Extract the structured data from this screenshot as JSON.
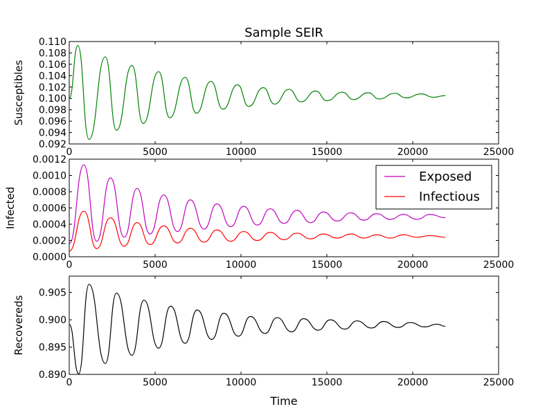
{
  "figure": {
    "title": "Sample SEIR",
    "xlabel": "Time"
  },
  "chart_data": [
    {
      "type": "line",
      "ylabel": "Susceptibles",
      "xlim": [
        0,
        25000
      ],
      "ylim": [
        0.092,
        0.11
      ],
      "xticks": [
        0,
        5000,
        10000,
        15000,
        20000,
        25000
      ],
      "xtick_labels": [
        "0",
        "5000",
        "10000",
        "15000",
        "20000",
        "25000"
      ],
      "yticks": [
        0.092,
        0.094,
        0.096,
        0.098,
        0.1,
        0.102,
        0.104,
        0.106,
        0.108,
        0.11
      ],
      "ytick_labels": [
        "0.092",
        "0.094",
        "0.096",
        "0.098",
        "0.100",
        "0.102",
        "0.104",
        "0.106",
        "0.108",
        "0.110"
      ],
      "grid": false,
      "legend": null,
      "series": [
        {
          "color": "#008000",
          "x": [
            0,
            500,
            1150,
            2100,
            2750,
            3650,
            4300,
            5200,
            5850,
            6750,
            7400,
            8250,
            8950,
            9800,
            10450,
            11300,
            11950,
            12800,
            13500,
            14350,
            15000,
            15900,
            16550,
            17400,
            18050,
            18950,
            19600,
            20500,
            21200,
            21900
          ],
          "y": [
            0.1,
            0.1093,
            0.0928,
            0.1073,
            0.0944,
            0.1058,
            0.0956,
            0.1047,
            0.0966,
            0.1037,
            0.0974,
            0.103,
            0.0981,
            0.1024,
            0.0986,
            0.1019,
            0.099,
            0.1016,
            0.0994,
            0.1013,
            0.0996,
            0.1011,
            0.0998,
            0.101,
            0.0999,
            0.1009,
            0.1001,
            0.1008,
            0.1002,
            0.1005
          ]
        }
      ]
    },
    {
      "type": "line",
      "ylabel": "Infected",
      "xlim": [
        0,
        25000
      ],
      "ylim": [
        0.0,
        0.0012
      ],
      "xticks": [
        0,
        5000,
        10000,
        15000,
        20000,
        25000
      ],
      "xtick_labels": [
        "0",
        "5000",
        "10000",
        "15000",
        "20000",
        "25000"
      ],
      "yticks": [
        0.0,
        0.0002,
        0.0004,
        0.0006,
        0.0008,
        0.001,
        0.0012
      ],
      "ytick_labels": [
        "0.0000",
        "0.0002",
        "0.0004",
        "0.0006",
        "0.0008",
        "0.0010",
        "0.0012"
      ],
      "grid": false,
      "legend": "top-right",
      "series": [
        {
          "name": "Exposed",
          "color": "#bf00bf",
          "x": [
            0,
            850,
            1600,
            2400,
            3200,
            3950,
            4700,
            5500,
            6300,
            7050,
            7850,
            8600,
            9400,
            10150,
            10950,
            11700,
            12500,
            13250,
            14050,
            14800,
            15600,
            16400,
            17150,
            17900,
            18700,
            19450,
            20250,
            21000,
            21900
          ],
          "y": [
            0.00016,
            0.00113,
            0.00019,
            0.00097,
            0.00024,
            0.00084,
            0.00028,
            0.00076,
            0.00031,
            0.0007,
            0.00034,
            0.00065,
            0.00037,
            0.00062,
            0.00039,
            0.00059,
            0.00041,
            0.00057,
            0.00042,
            0.00055,
            0.00044,
            0.00054,
            0.00045,
            0.00053,
            0.00046,
            0.00052,
            0.00046,
            0.00052,
            0.00048
          ]
        },
        {
          "name": "Infectious",
          "color": "#ff0000",
          "x": [
            0,
            850,
            1600,
            2400,
            3200,
            3950,
            4700,
            5500,
            6300,
            7050,
            7850,
            8600,
            9400,
            10150,
            10950,
            11700,
            12500,
            13250,
            14050,
            14800,
            15600,
            16400,
            17150,
            17900,
            18700,
            19450,
            20250,
            21000,
            21900
          ],
          "y": [
            7e-05,
            0.00056,
            0.0001,
            0.00048,
            0.00013,
            0.00042,
            0.00015,
            0.00038,
            0.00017,
            0.00035,
            0.00018,
            0.00033,
            0.00019,
            0.00031,
            0.0002,
            0.0003,
            0.00021,
            0.00029,
            0.00022,
            0.00028,
            0.00023,
            0.00028,
            0.00023,
            0.00027,
            0.00023,
            0.00027,
            0.00024,
            0.00026,
            0.00024
          ]
        }
      ]
    },
    {
      "type": "line",
      "ylabel": "Recovereds",
      "xlim": [
        0,
        25000
      ],
      "ylim": [
        0.89,
        0.908
      ],
      "xticks": [
        0,
        5000,
        10000,
        15000,
        20000,
        25000
      ],
      "xtick_labels": [
        "0",
        "5000",
        "10000",
        "15000",
        "20000",
        "25000"
      ],
      "yticks": [
        0.89,
        0.895,
        0.9,
        0.905
      ],
      "ytick_labels": [
        "0.890",
        "0.895",
        "0.900",
        "0.905"
      ],
      "grid": false,
      "legend": null,
      "series": [
        {
          "color": "#000000",
          "x": [
            0,
            550,
            1150,
            2100,
            2750,
            3650,
            4350,
            5200,
            5900,
            6750,
            7450,
            8300,
            9000,
            9850,
            10550,
            11400,
            12100,
            12950,
            13650,
            14500,
            15200,
            16050,
            16750,
            17600,
            18300,
            19150,
            19850,
            20700,
            21400,
            21900
          ],
          "y": [
            0.8992,
            0.8901,
            0.9065,
            0.892,
            0.9049,
            0.8935,
            0.9036,
            0.8948,
            0.9025,
            0.8957,
            0.9018,
            0.8964,
            0.9012,
            0.897,
            0.9006,
            0.8975,
            0.9004,
            0.8978,
            0.9002,
            0.8981,
            0.9,
            0.8983,
            0.8998,
            0.8985,
            0.8997,
            0.8986,
            0.8995,
            0.8987,
            0.8992,
            0.8988
          ]
        }
      ]
    }
  ]
}
